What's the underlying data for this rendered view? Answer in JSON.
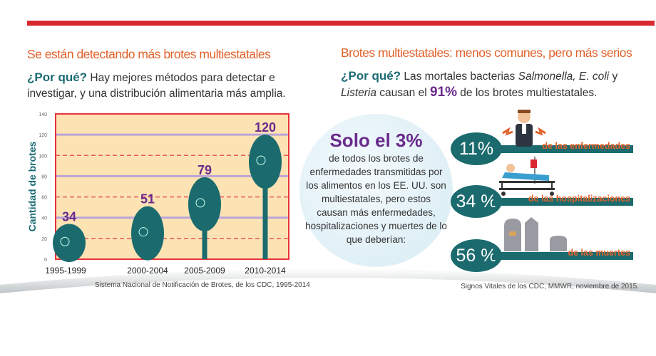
{
  "left": {
    "title": "Se están detectando más brotes multiestatales",
    "why": "¿Por qué?",
    "text": "Hay mejores métodos para detectar e investigar, y una distribución alimentaria más amplia.",
    "source": "Sistema Nacional de Notificación de Brotes, de los CDC, 1995-2014"
  },
  "chart_data": {
    "type": "bar",
    "categories": [
      "1995-1999",
      "2000-2004",
      "2005-2009",
      "2010-2014"
    ],
    "values": [
      34,
      51,
      79,
      120
    ],
    "ylabel": "Cantidad de brotes",
    "xlabel": "",
    "ylim": [
      0,
      140
    ],
    "yticks": [
      "0",
      "20",
      "40",
      "60",
      "80",
      "100",
      "120",
      "140"
    ],
    "colors": {
      "bar": "#1b6b6e",
      "plot_bg": "#fde3b4",
      "frame": "#e8333a",
      "label": "#6a2a8c"
    }
  },
  "right": {
    "title": "Brotes multiestatales: menos comunes, pero más serios",
    "why": "¿Por qué?",
    "text1": "Las mortales bacterias",
    "italic1": "Salmonella, E. coli",
    "text2": "y",
    "italic2": "Listeria",
    "text3": "causan el",
    "highlight": "91%",
    "text4": "de los brotes multiestatales.",
    "circle_big": "Solo el 3%",
    "circle_text": "de todos los brotes de enfermedades transmitidas por los alimentos en los EE. UU. son multiestatales, pero estos causan más enfermedades, hospitalizaciones y muertes de lo que deberían:",
    "stats": [
      {
        "value": "11%",
        "label": "de las enfermedades",
        "icon": "sick-person-icon"
      },
      {
        "value": "34 %",
        "label": "de las hospitalizaciones",
        "icon": "hospital-bed-icon"
      },
      {
        "value": "56 %",
        "label": "de las muertes",
        "icon": "tombstones-icon"
      }
    ],
    "source": "Signos Vitales de los CDC, MMWR, noviembre de 2015."
  }
}
